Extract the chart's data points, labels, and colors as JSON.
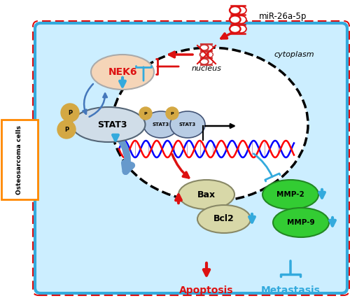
{
  "fig_width": 5.0,
  "fig_height": 4.33,
  "dpi": 100,
  "bg_color": "#ffffff",
  "red_color": "#dd1111",
  "blue_color": "#33aadd",
  "dark_blue": "#4477bb",
  "orange_color": "#ff8800",
  "mir_label": "miR-26a-5p",
  "apoptosis_label": "Apoptosis",
  "metastasis_label": "Metastasis",
  "cytoplasm_text": "cytoplasm",
  "nucleus_text": "nucleus",
  "osteosarcoma_label_text": "Osteosarcoma cells"
}
